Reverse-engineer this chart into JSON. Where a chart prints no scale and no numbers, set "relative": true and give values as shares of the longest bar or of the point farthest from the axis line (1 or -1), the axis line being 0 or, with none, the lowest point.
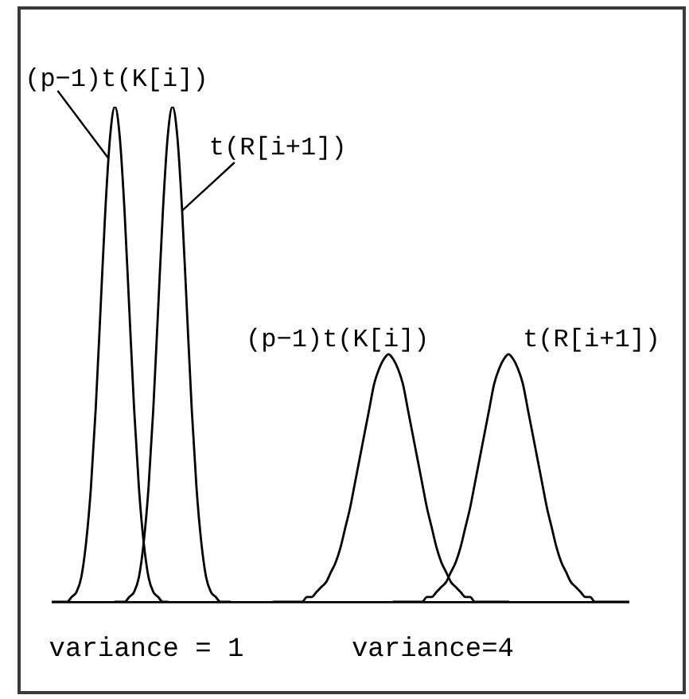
{
  "chart_data": {
    "type": "line",
    "relative": true,
    "categories": [
      null,
      null,
      null,
      null,
      null,
      null,
      null,
      null,
      null,
      null,
      null,
      null,
      null,
      null,
      null,
      null,
      null,
      null,
      null,
      null,
      null,
      null,
      null,
      null,
      null,
      null,
      null,
      null,
      null,
      null,
      null,
      null,
      null,
      null,
      null,
      null,
      null,
      null,
      null,
      null,
      null,
      null,
      null,
      null,
      null,
      null,
      null,
      null,
      null,
      null,
      null,
      null,
      null,
      null,
      null,
      null,
      null,
      null,
      null,
      null,
      null,
      null,
      null,
      null,
      null,
      null,
      null,
      null,
      null,
      null,
      null,
      null,
      null,
      null,
      null,
      null,
      null,
      null,
      null,
      null,
      null,
      null,
      null,
      null,
      null,
      null,
      null,
      null,
      null,
      null,
      null,
      null,
      null,
      null,
      null,
      null,
      null,
      null,
      null,
      null,
      null,
      null,
      null,
      null,
      null,
      null,
      null,
      null,
      null,
      null,
      null,
      null,
      null,
      null,
      null,
      null,
      null,
      null,
      null,
      null,
      null
    ],
    "series": [
      {
        "name": "(p−1)t(K[i])",
        "color": "#000000",
        "values": [
          0,
          0,
          0,
          0,
          0.01,
          0.02,
          0.05,
          0.12,
          0.23,
          0.39,
          0.59,
          0.79,
          0.94,
          1,
          0.94,
          0.79,
          0.59,
          0.39,
          0.23,
          0.12,
          0.05,
          0.02,
          0.01,
          0,
          0,
          null,
          null,
          null,
          null,
          null,
          null,
          null,
          null,
          null,
          null,
          null,
          null,
          null,
          null,
          null,
          null,
          null,
          null,
          null,
          null,
          null,
          null,
          null,
          null,
          null,
          null,
          null,
          null,
          null,
          null,
          null,
          null,
          null,
          null,
          null,
          null,
          null,
          null,
          null,
          null,
          null,
          null,
          null,
          null,
          null,
          null,
          null,
          null,
          null,
          null,
          null,
          null,
          null,
          null,
          null,
          null,
          null,
          null,
          null,
          null,
          null,
          null,
          null,
          null,
          null,
          null,
          null,
          null,
          null,
          null,
          null,
          null,
          null,
          null,
          null,
          null,
          null,
          null,
          null,
          null,
          null,
          null,
          null,
          null,
          null,
          null,
          null,
          null,
          null,
          null,
          null,
          null,
          null,
          null,
          null,
          null
        ]
      },
      {
        "name": "t(R[i+1])",
        "color": "#000000",
        "values": [
          null,
          null,
          null,
          null,
          null,
          null,
          null,
          null,
          null,
          null,
          null,
          null,
          null,
          0,
          0,
          0,
          0.01,
          0.02,
          0.05,
          0.12,
          0.23,
          0.39,
          0.59,
          0.79,
          0.94,
          1,
          0.94,
          0.79,
          0.59,
          0.39,
          0.23,
          0.12,
          0.05,
          0.02,
          0.01,
          0,
          0,
          0,
          null,
          null,
          null,
          null,
          null,
          null,
          null,
          null,
          null,
          null,
          null,
          null,
          null,
          null,
          null,
          null,
          null,
          null,
          null,
          null,
          null,
          null,
          null,
          null,
          null,
          null,
          null,
          null,
          null,
          null,
          null,
          null,
          null,
          null,
          null,
          null,
          null,
          null,
          null,
          null,
          null,
          null,
          null,
          null,
          null,
          null,
          null,
          null,
          null,
          null,
          null,
          null,
          null,
          null,
          null,
          null,
          null,
          null,
          null,
          null,
          null,
          null,
          null,
          null,
          null,
          null,
          null,
          null,
          null,
          null,
          null,
          null,
          null,
          null,
          null,
          null,
          null,
          null,
          null,
          null,
          null,
          null,
          null
        ]
      },
      {
        "name": "(p−1)t(K[i])",
        "color": "#000000",
        "values": [
          null,
          null,
          null,
          null,
          null,
          null,
          null,
          null,
          null,
          null,
          null,
          null,
          null,
          null,
          null,
          null,
          null,
          null,
          null,
          null,
          null,
          null,
          null,
          null,
          null,
          null,
          null,
          null,
          null,
          null,
          null,
          null,
          null,
          null,
          null,
          null,
          null,
          null,
          null,
          null,
          null,
          null,
          null,
          null,
          null,
          null,
          0,
          0,
          0,
          0,
          0,
          0,
          0,
          0.01,
          0.01,
          0.02,
          0.03,
          0.04,
          0.06,
          0.08,
          0.11,
          0.15,
          0.19,
          0.24,
          0.29,
          0.34,
          0.39,
          0.44,
          0.47,
          0.49,
          0.5,
          0.49,
          0.47,
          0.44,
          0.39,
          0.34,
          0.29,
          0.24,
          0.19,
          0.15,
          0.11,
          0.08,
          0.06,
          0.04,
          0.03,
          0.02,
          0.01,
          0.01,
          0,
          0,
          0,
          0,
          0,
          0,
          0,
          0,
          null,
          null,
          null,
          null,
          null,
          null,
          null,
          null,
          null,
          null,
          null,
          null,
          null,
          null,
          null,
          null,
          null,
          null,
          null,
          null,
          null,
          null,
          null,
          null,
          null
        ]
      },
      {
        "name": "t(R[i+1])",
        "color": "#000000",
        "values": [
          null,
          null,
          null,
          null,
          null,
          null,
          null,
          null,
          null,
          null,
          null,
          null,
          null,
          null,
          null,
          null,
          null,
          null,
          null,
          null,
          null,
          null,
          null,
          null,
          null,
          null,
          null,
          null,
          null,
          null,
          null,
          null,
          null,
          null,
          null,
          null,
          null,
          null,
          null,
          null,
          null,
          null,
          null,
          null,
          null,
          null,
          null,
          null,
          null,
          null,
          null,
          null,
          null,
          null,
          null,
          null,
          null,
          null,
          null,
          null,
          null,
          null,
          null,
          null,
          null,
          null,
          null,
          null,
          null,
          null,
          null,
          0,
          0,
          0,
          0,
          0,
          0,
          0,
          0.01,
          0.01,
          0.02,
          0.03,
          0.04,
          0.06,
          0.08,
          0.11,
          0.15,
          0.19,
          0.24,
          0.29,
          0.34,
          0.39,
          0.44,
          0.47,
          0.49,
          0.5,
          0.49,
          0.47,
          0.44,
          0.39,
          0.34,
          0.29,
          0.24,
          0.19,
          0.15,
          0.11,
          0.08,
          0.06,
          0.04,
          0.03,
          0.02,
          0.01,
          0.01,
          0,
          0,
          0,
          0,
          0,
          0,
          0,
          0
        ]
      }
    ],
    "annotations": [
      "variance = 1",
      "variance=4"
    ]
  }
}
